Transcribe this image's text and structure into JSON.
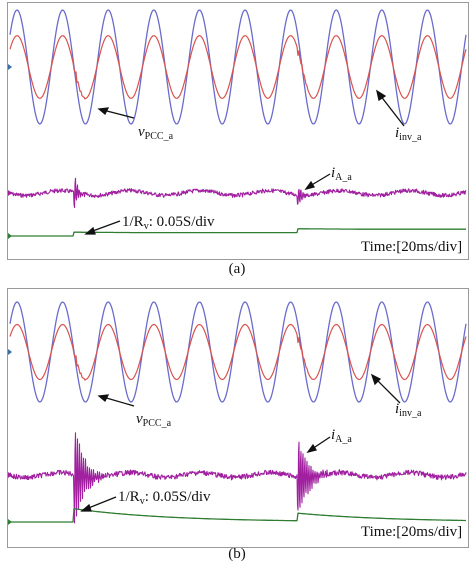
{
  "panels": [
    {
      "caption": "(a)",
      "time_label": "Time:[20ms/div]",
      "v_label": {
        "main": "v",
        "sub": "PCC_a"
      },
      "i_inv_label": {
        "main": "i",
        "sub": "inv_a"
      },
      "i_a_label": {
        "main": "i",
        "sub": "A_a"
      },
      "rv_label": {
        "prefix": "1/R",
        "sub": "v",
        "suffix": ": 0.05S/div"
      }
    },
    {
      "caption": "(b)",
      "time_label": "Time:[20ms/div]",
      "v_label": {
        "main": "v",
        "sub": "PCC_a"
      },
      "i_inv_label": {
        "main": "i",
        "sub": "inv_a"
      },
      "i_a_label": {
        "main": "i",
        "sub": "A_a"
      },
      "rv_label": {
        "prefix": "1/R",
        "sub": "v",
        "suffix": ": 0.05S/div"
      }
    }
  ],
  "chart_data": [
    {
      "type": "line",
      "panel": "a",
      "time_per_div_ms": 20,
      "divisions": 10,
      "series": [
        {
          "name": "v_PCC_a",
          "color": "#6b6bcc",
          "cycles": 10,
          "amplitude_rel": 1.0
        },
        {
          "name": "i_inv_a",
          "color": "#d9534f",
          "cycles": 10,
          "amplitude_rel": 0.55
        },
        {
          "name": "i_A_a",
          "color": "#a020a0",
          "transient_times_div": [
            1.4,
            6.3
          ],
          "transient_amplitude_rel": [
            0.9,
            0.55
          ],
          "decay": "fast"
        },
        {
          "name": "1/R_v",
          "color": "#2e7d32",
          "step_times_div": [
            1.4,
            6.3
          ],
          "step_height_div": [
            0.1,
            0.1
          ],
          "decay": "fast"
        }
      ]
    },
    {
      "type": "line",
      "panel": "b",
      "time_per_div_ms": 20,
      "divisions": 10,
      "series": [
        {
          "name": "v_PCC_a",
          "color": "#6b6bcc",
          "cycles": 10,
          "amplitude_rel": 1.0
        },
        {
          "name": "i_inv_a",
          "color": "#d9534f",
          "cycles": 10,
          "amplitude_rel": 0.55
        },
        {
          "name": "i_A_a",
          "color": "#a020a0",
          "transient_times_div": [
            1.4,
            6.3
          ],
          "transient_amplitude_rel": [
            1.3,
            1.1
          ],
          "decay": "slow"
        },
        {
          "name": "1/R_v",
          "color": "#2e7d32",
          "step_times_div": [
            1.4,
            6.3
          ],
          "step_height_div": [
            0.35,
            0.2
          ],
          "decay": "slow"
        }
      ]
    }
  ]
}
